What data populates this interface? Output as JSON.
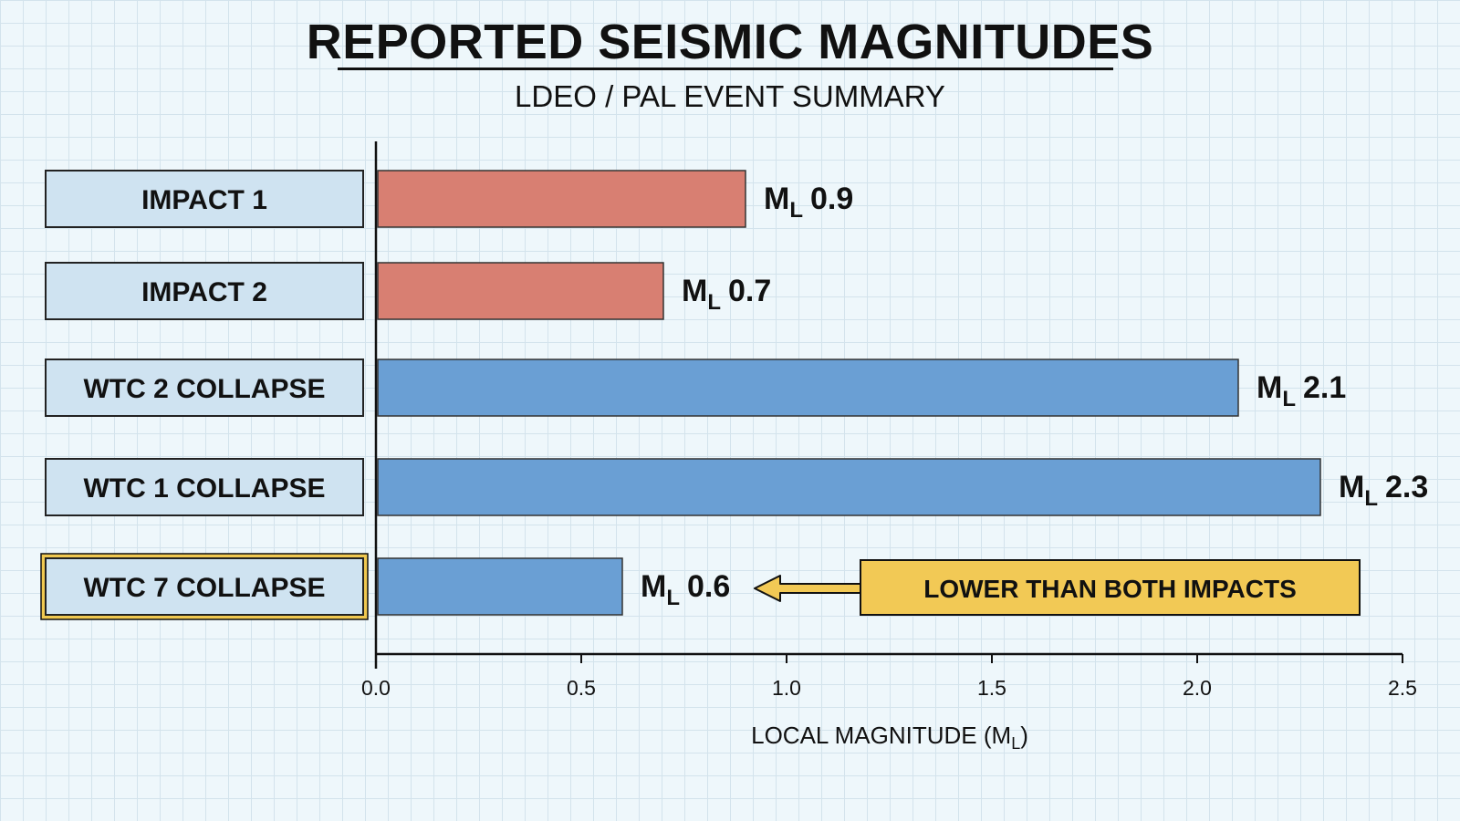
{
  "title": "REPORTED SEISMIC MAGNITUDES",
  "subtitle": "LDEO / PAL EVENT SUMMARY",
  "chart_data": {
    "type": "bar",
    "orientation": "horizontal",
    "title": "REPORTED SEISMIC MAGNITUDES",
    "subtitle": "LDEO / PAL EVENT SUMMARY",
    "categories": [
      "IMPACT 1",
      "IMPACT 2",
      "WTC 2 COLLAPSE",
      "WTC 1 COLLAPSE",
      "WTC 7 COLLAPSE"
    ],
    "values": [
      0.9,
      0.7,
      2.1,
      2.3,
      0.6
    ],
    "value_prefix": "M",
    "value_prefix_subscript": "L",
    "bar_colors": [
      "#d87f72",
      "#d87f72",
      "#6a9fd4",
      "#6a9fd4",
      "#6a9fd4"
    ],
    "category_box_color": "#cfe3f1",
    "highlight_category": "WTC 7 COLLAPSE",
    "highlight_color": "#f0c850",
    "xlabel": "LOCAL MAGNITUDE (M",
    "xlabel_subscript": "L",
    "xlabel_suffix": ")",
    "xlim": [
      0,
      2.5
    ],
    "xticks": [
      0.0,
      0.5,
      1.0,
      1.5,
      2.0,
      2.5
    ],
    "xtick_labels": [
      "0.0",
      "0.5",
      "1.0",
      "1.5",
      "2.0",
      "2.5"
    ],
    "grid": true,
    "annotation": {
      "text": "LOWER THAN BOTH IMPACTS",
      "target": "WTC 7 COLLAPSE",
      "color": "#f2c955"
    }
  }
}
